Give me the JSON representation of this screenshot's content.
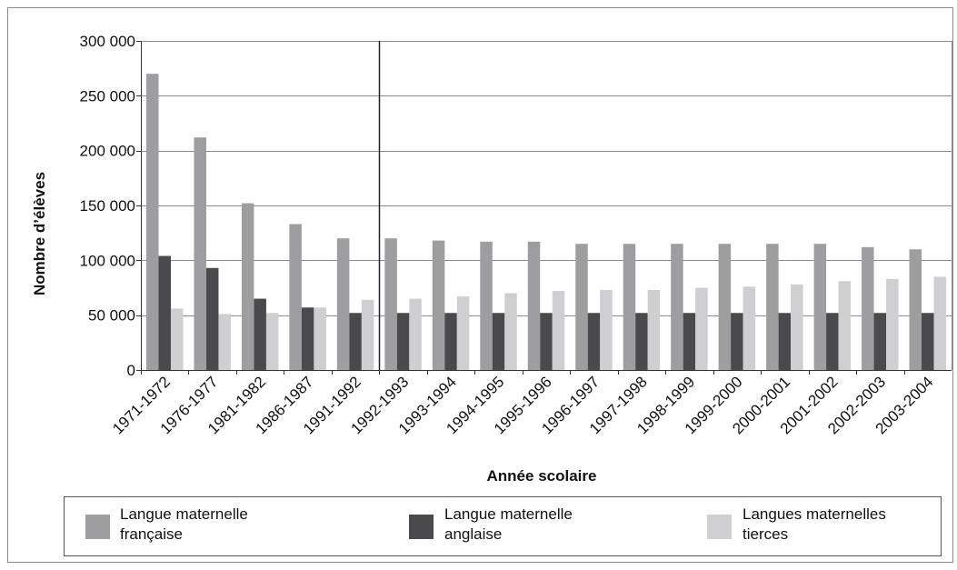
{
  "chart_data": {
    "type": "bar",
    "categories": [
      "1971-1972",
      "1976-1977",
      "1981-1982",
      "1986-1987",
      "1991-1992",
      "1992-1993",
      "1993-1994",
      "1994-1995",
      "1995-1996",
      "1996-1997",
      "1997-1998",
      "1998-1999",
      "1999-2000",
      "2000-2001",
      "2001-2002",
      "2002-2003",
      "2003-2004"
    ],
    "series": [
      {
        "name": "Langue maternelle française",
        "legend_lines": [
          "Langue maternelle",
          "française"
        ],
        "color": "#9e9ea0",
        "values": [
          270000,
          212000,
          152000,
          133000,
          120000,
          120000,
          118000,
          117000,
          117000,
          115000,
          115000,
          115000,
          115000,
          115000,
          115000,
          112000,
          110000
        ]
      },
      {
        "name": "Langue maternelle anglaise",
        "legend_lines": [
          "Langue maternelle",
          "anglaise"
        ],
        "color": "#4a4a4c",
        "values": [
          104000,
          93000,
          65000,
          57000,
          52000,
          52000,
          52000,
          52000,
          52000,
          52000,
          52000,
          52000,
          52000,
          52000,
          52000,
          52000,
          52000
        ]
      },
      {
        "name": "Langues maternelles tierces",
        "legend_lines": [
          "Langues maternelles",
          "tierces"
        ],
        "color": "#cfcfd1",
        "values": [
          56000,
          51000,
          52000,
          57000,
          64000,
          65000,
          67000,
          70000,
          72000,
          73000,
          73000,
          75000,
          76000,
          78000,
          81000,
          83000,
          85000
        ]
      }
    ],
    "xlabel": "Année scolaire",
    "ylabel": "Nombre d’élèves",
    "ylim": [
      0,
      300000
    ],
    "yticks": [
      0,
      50000,
      100000,
      150000,
      200000,
      250000,
      300000
    ],
    "ytick_labels": [
      "0",
      "50 000",
      "100 000",
      "150 000",
      "200 000",
      "250 000",
      "300 000"
    ],
    "separator_after_category": "1991-1992",
    "grid": true,
    "legend_position": "bottom"
  }
}
